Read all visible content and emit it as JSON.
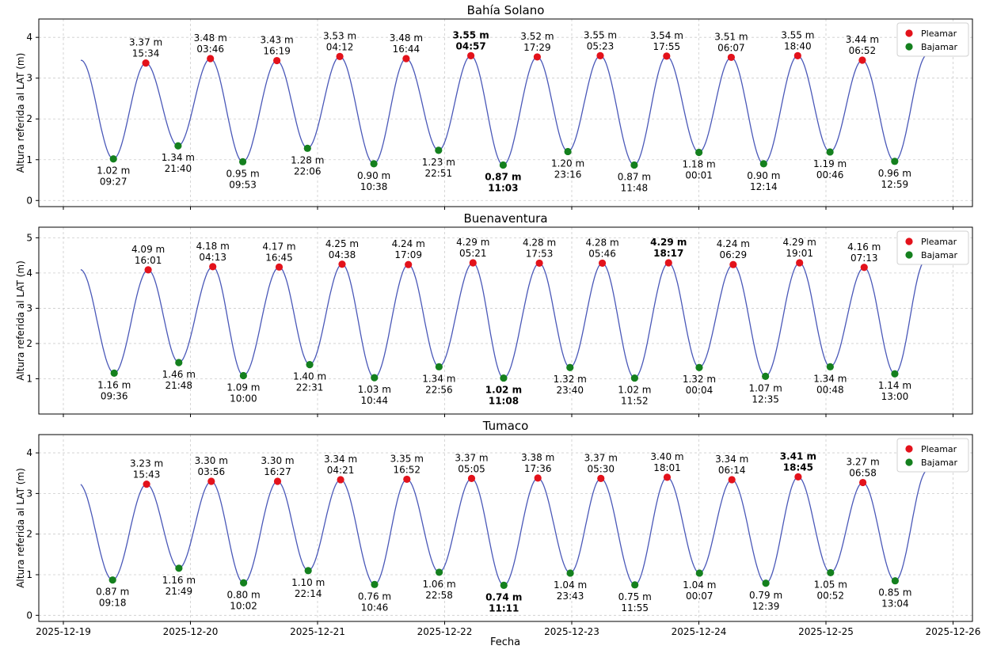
{
  "figure": {
    "xlabel": "Fecha",
    "ylabel": "Altura referida al LAT (m)",
    "x_ticks": [
      "2025-12-19",
      "2025-12-20",
      "2025-12-21",
      "2025-12-22",
      "2025-12-23",
      "2025-12-24",
      "2025-12-25",
      "2025-12-26"
    ],
    "legend": {
      "high": "Pleamar",
      "low": "Bajamar",
      "position": "top-right"
    },
    "colors": {
      "curve": "#4a58b8",
      "high": "#e3121b",
      "low": "#14801e",
      "axes": "#000000",
      "grid": "#cccccc"
    },
    "grid": true
  },
  "chart_data": [
    {
      "type": "line",
      "title": "Bahía Solano",
      "ylim": [
        -0.15,
        4.45
      ],
      "y_ticks": [
        0,
        1,
        2,
        3,
        4
      ],
      "start": {
        "value": 3.44
      },
      "end": {
        "value": 3.57
      },
      "series": [
        {
          "name": "Pleamar",
          "points": [
            {
              "date": "2025-12-19",
              "time": "15:34",
              "value": 3.37,
              "label": "3.37 m",
              "bold": false
            },
            {
              "date": "2025-12-20",
              "time": "03:46",
              "value": 3.48,
              "label": "3.48 m",
              "bold": false
            },
            {
              "date": "2025-12-20",
              "time": "16:19",
              "value": 3.43,
              "label": "3.43 m",
              "bold": false
            },
            {
              "date": "2025-12-21",
              "time": "04:12",
              "value": 3.53,
              "label": "3.53 m",
              "bold": false
            },
            {
              "date": "2025-12-21",
              "time": "16:44",
              "value": 3.48,
              "label": "3.48 m",
              "bold": false
            },
            {
              "date": "2025-12-22",
              "time": "04:57",
              "value": 3.55,
              "label": "3.55 m",
              "bold": true
            },
            {
              "date": "2025-12-22",
              "time": "17:29",
              "value": 3.52,
              "label": "3.52 m",
              "bold": false
            },
            {
              "date": "2025-12-23",
              "time": "05:23",
              "value": 3.55,
              "label": "3.55 m",
              "bold": false
            },
            {
              "date": "2025-12-23",
              "time": "17:55",
              "value": 3.54,
              "label": "3.54 m",
              "bold": false
            },
            {
              "date": "2025-12-24",
              "time": "06:07",
              "value": 3.51,
              "label": "3.51 m",
              "bold": false
            },
            {
              "date": "2025-12-24",
              "time": "18:40",
              "value": 3.55,
              "label": "3.55 m",
              "bold": false
            },
            {
              "date": "2025-12-25",
              "time": "06:52",
              "value": 3.44,
              "label": "3.44 m",
              "bold": false
            }
          ]
        },
        {
          "name": "Bajamar",
          "points": [
            {
              "date": "2025-12-19",
              "time": "09:27",
              "value": 1.02,
              "label": "1.02 m",
              "bold": false
            },
            {
              "date": "2025-12-19",
              "time": "21:40",
              "value": 1.34,
              "label": "1.34 m",
              "bold": false
            },
            {
              "date": "2025-12-20",
              "time": "09:53",
              "value": 0.95,
              "label": "0.95 m",
              "bold": false
            },
            {
              "date": "2025-12-20",
              "time": "22:06",
              "value": 1.28,
              "label": "1.28 m",
              "bold": false
            },
            {
              "date": "2025-12-21",
              "time": "10:38",
              "value": 0.9,
              "label": "0.90 m",
              "bold": false
            },
            {
              "date": "2025-12-21",
              "time": "22:51",
              "value": 1.23,
              "label": "1.23 m",
              "bold": false
            },
            {
              "date": "2025-12-22",
              "time": "11:03",
              "value": 0.87,
              "label": "0.87 m",
              "bold": true
            },
            {
              "date": "2025-12-22",
              "time": "23:16",
              "value": 1.2,
              "label": "1.20 m",
              "bold": false
            },
            {
              "date": "2025-12-23",
              "time": "11:48",
              "value": 0.87,
              "label": "0.87 m",
              "bold": false
            },
            {
              "date": "2025-12-24",
              "time": "00:01",
              "value": 1.18,
              "label": "1.18 m",
              "bold": false
            },
            {
              "date": "2025-12-24",
              "time": "12:14",
              "value": 0.9,
              "label": "0.90 m",
              "bold": false
            },
            {
              "date": "2025-12-25",
              "time": "00:46",
              "value": 1.19,
              "label": "1.19 m",
              "bold": false
            },
            {
              "date": "2025-12-25",
              "time": "12:59",
              "value": 0.96,
              "label": "0.96 m",
              "bold": false
            }
          ]
        }
      ]
    },
    {
      "type": "line",
      "title": "Buenaventura",
      "ylim": [
        0,
        5.3
      ],
      "y_ticks": [
        1,
        2,
        3,
        4,
        5
      ],
      "start": {
        "value": 4.1
      },
      "end": {
        "value": 4.35
      },
      "series": [
        {
          "name": "Pleamar",
          "points": [
            {
              "date": "2025-12-19",
              "time": "16:01",
              "value": 4.09,
              "label": "4.09 m",
              "bold": false
            },
            {
              "date": "2025-12-20",
              "time": "04:13",
              "value": 4.18,
              "label": "4.18 m",
              "bold": false
            },
            {
              "date": "2025-12-20",
              "time": "16:45",
              "value": 4.17,
              "label": "4.17 m",
              "bold": false
            },
            {
              "date": "2025-12-21",
              "time": "04:38",
              "value": 4.25,
              "label": "4.25 m",
              "bold": false
            },
            {
              "date": "2025-12-21",
              "time": "17:09",
              "value": 4.24,
              "label": "4.24 m",
              "bold": false
            },
            {
              "date": "2025-12-22",
              "time": "05:21",
              "value": 4.29,
              "label": "4.29 m",
              "bold": false
            },
            {
              "date": "2025-12-22",
              "time": "17:53",
              "value": 4.28,
              "label": "4.28 m",
              "bold": false
            },
            {
              "date": "2025-12-23",
              "time": "05:46",
              "value": 4.28,
              "label": "4.28 m",
              "bold": false
            },
            {
              "date": "2025-12-23",
              "time": "18:17",
              "value": 4.29,
              "label": "4.29 m",
              "bold": true
            },
            {
              "date": "2025-12-24",
              "time": "06:29",
              "value": 4.24,
              "label": "4.24 m",
              "bold": false
            },
            {
              "date": "2025-12-24",
              "time": "19:01",
              "value": 4.29,
              "label": "4.29 m",
              "bold": false
            },
            {
              "date": "2025-12-25",
              "time": "07:13",
              "value": 4.16,
              "label": "4.16 m",
              "bold": false
            }
          ]
        },
        {
          "name": "Bajamar",
          "points": [
            {
              "date": "2025-12-19",
              "time": "09:36",
              "value": 1.16,
              "label": "1.16 m",
              "bold": false
            },
            {
              "date": "2025-12-19",
              "time": "21:48",
              "value": 1.46,
              "label": "1.46 m",
              "bold": false
            },
            {
              "date": "2025-12-20",
              "time": "10:00",
              "value": 1.09,
              "label": "1.09 m",
              "bold": false
            },
            {
              "date": "2025-12-20",
              "time": "22:31",
              "value": 1.4,
              "label": "1.40 m",
              "bold": false
            },
            {
              "date": "2025-12-21",
              "time": "10:44",
              "value": 1.03,
              "label": "1.03 m",
              "bold": false
            },
            {
              "date": "2025-12-21",
              "time": "22:56",
              "value": 1.34,
              "label": "1.34 m",
              "bold": false
            },
            {
              "date": "2025-12-22",
              "time": "11:08",
              "value": 1.02,
              "label": "1.02 m",
              "bold": true
            },
            {
              "date": "2025-12-22",
              "time": "23:40",
              "value": 1.32,
              "label": "1.32 m",
              "bold": false
            },
            {
              "date": "2025-12-23",
              "time": "11:52",
              "value": 1.02,
              "label": "1.02 m",
              "bold": false
            },
            {
              "date": "2025-12-24",
              "time": "00:04",
              "value": 1.32,
              "label": "1.32 m",
              "bold": false
            },
            {
              "date": "2025-12-24",
              "time": "12:35",
              "value": 1.07,
              "label": "1.07 m",
              "bold": false
            },
            {
              "date": "2025-12-25",
              "time": "00:48",
              "value": 1.34,
              "label": "1.34 m",
              "bold": false
            },
            {
              "date": "2025-12-25",
              "time": "13:00",
              "value": 1.14,
              "label": "1.14 m",
              "bold": false
            }
          ]
        }
      ]
    },
    {
      "type": "line",
      "title": "Tumaco",
      "ylim": [
        -0.15,
        4.45
      ],
      "y_ticks": [
        0,
        1,
        2,
        3,
        4
      ],
      "start": {
        "value": 3.25
      },
      "end": {
        "value": 3.57
      },
      "series": [
        {
          "name": "Pleamar",
          "points": [
            {
              "date": "2025-12-19",
              "time": "15:43",
              "value": 3.23,
              "label": "3.23 m",
              "bold": false
            },
            {
              "date": "2025-12-20",
              "time": "03:56",
              "value": 3.3,
              "label": "3.30 m",
              "bold": false
            },
            {
              "date": "2025-12-20",
              "time": "16:27",
              "value": 3.3,
              "label": "3.30 m",
              "bold": false
            },
            {
              "date": "2025-12-21",
              "time": "04:21",
              "value": 3.34,
              "label": "3.34 m",
              "bold": false
            },
            {
              "date": "2025-12-21",
              "time": "16:52",
              "value": 3.35,
              "label": "3.35 m",
              "bold": false
            },
            {
              "date": "2025-12-22",
              "time": "05:05",
              "value": 3.37,
              "label": "3.37 m",
              "bold": false
            },
            {
              "date": "2025-12-22",
              "time": "17:36",
              "value": 3.38,
              "label": "3.38 m",
              "bold": false
            },
            {
              "date": "2025-12-23",
              "time": "05:30",
              "value": 3.37,
              "label": "3.37 m",
              "bold": false
            },
            {
              "date": "2025-12-23",
              "time": "18:01",
              "value": 3.4,
              "label": "3.40 m",
              "bold": false
            },
            {
              "date": "2025-12-24",
              "time": "06:14",
              "value": 3.34,
              "label": "3.34 m",
              "bold": false
            },
            {
              "date": "2025-12-24",
              "time": "18:45",
              "value": 3.41,
              "label": "3.41 m",
              "bold": true
            },
            {
              "date": "2025-12-25",
              "time": "06:58",
              "value": 3.27,
              "label": "3.27 m",
              "bold": false
            }
          ]
        },
        {
          "name": "Bajamar",
          "points": [
            {
              "date": "2025-12-19",
              "time": "09:18",
              "value": 0.87,
              "label": "0.87 m",
              "bold": false
            },
            {
              "date": "2025-12-19",
              "time": "21:49",
              "value": 1.16,
              "label": "1.16 m",
              "bold": false
            },
            {
              "date": "2025-12-20",
              "time": "10:02",
              "value": 0.8,
              "label": "0.80 m",
              "bold": false
            },
            {
              "date": "2025-12-20",
              "time": "22:14",
              "value": 1.1,
              "label": "1.10 m",
              "bold": false
            },
            {
              "date": "2025-12-21",
              "time": "10:46",
              "value": 0.76,
              "label": "0.76 m",
              "bold": false
            },
            {
              "date": "2025-12-21",
              "time": "22:58",
              "value": 1.06,
              "label": "1.06 m",
              "bold": false
            },
            {
              "date": "2025-12-22",
              "time": "11:11",
              "value": 0.74,
              "label": "0.74 m",
              "bold": true
            },
            {
              "date": "2025-12-22",
              "time": "23:43",
              "value": 1.04,
              "label": "1.04 m",
              "bold": false
            },
            {
              "date": "2025-12-23",
              "time": "11:55",
              "value": 0.75,
              "label": "0.75 m",
              "bold": false
            },
            {
              "date": "2025-12-24",
              "time": "00:07",
              "value": 1.04,
              "label": "1.04 m",
              "bold": false
            },
            {
              "date": "2025-12-24",
              "time": "12:39",
              "value": 0.79,
              "label": "0.79 m",
              "bold": false
            },
            {
              "date": "2025-12-25",
              "time": "00:52",
              "value": 1.05,
              "label": "1.05 m",
              "bold": false
            },
            {
              "date": "2025-12-25",
              "time": "13:04",
              "value": 0.85,
              "label": "0.85 m",
              "bold": false
            }
          ]
        }
      ]
    }
  ]
}
